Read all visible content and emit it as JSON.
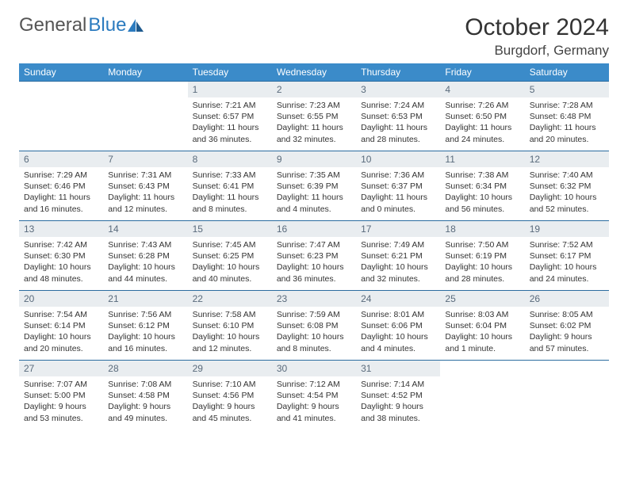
{
  "logo": {
    "text1": "General",
    "text2": "Blue"
  },
  "title": "October 2024",
  "location": "Burgdorf, Germany",
  "colors": {
    "header_bg": "#3b8bc9",
    "header_text": "#ffffff",
    "daynum_bg": "#e9edf0",
    "daynum_text": "#5a6b7c",
    "row_border": "#2b6ca0",
    "logo_accent": "#2b7bbf"
  },
  "weekdays": [
    "Sunday",
    "Monday",
    "Tuesday",
    "Wednesday",
    "Thursday",
    "Friday",
    "Saturday"
  ],
  "weeks": [
    [
      {
        "day": "",
        "sunrise": "",
        "sunset": "",
        "daylight": ""
      },
      {
        "day": "",
        "sunrise": "",
        "sunset": "",
        "daylight": ""
      },
      {
        "day": "1",
        "sunrise": "Sunrise: 7:21 AM",
        "sunset": "Sunset: 6:57 PM",
        "daylight": "Daylight: 11 hours and 36 minutes."
      },
      {
        "day": "2",
        "sunrise": "Sunrise: 7:23 AM",
        "sunset": "Sunset: 6:55 PM",
        "daylight": "Daylight: 11 hours and 32 minutes."
      },
      {
        "day": "3",
        "sunrise": "Sunrise: 7:24 AM",
        "sunset": "Sunset: 6:53 PM",
        "daylight": "Daylight: 11 hours and 28 minutes."
      },
      {
        "day": "4",
        "sunrise": "Sunrise: 7:26 AM",
        "sunset": "Sunset: 6:50 PM",
        "daylight": "Daylight: 11 hours and 24 minutes."
      },
      {
        "day": "5",
        "sunrise": "Sunrise: 7:28 AM",
        "sunset": "Sunset: 6:48 PM",
        "daylight": "Daylight: 11 hours and 20 minutes."
      }
    ],
    [
      {
        "day": "6",
        "sunrise": "Sunrise: 7:29 AM",
        "sunset": "Sunset: 6:46 PM",
        "daylight": "Daylight: 11 hours and 16 minutes."
      },
      {
        "day": "7",
        "sunrise": "Sunrise: 7:31 AM",
        "sunset": "Sunset: 6:43 PM",
        "daylight": "Daylight: 11 hours and 12 minutes."
      },
      {
        "day": "8",
        "sunrise": "Sunrise: 7:33 AM",
        "sunset": "Sunset: 6:41 PM",
        "daylight": "Daylight: 11 hours and 8 minutes."
      },
      {
        "day": "9",
        "sunrise": "Sunrise: 7:35 AM",
        "sunset": "Sunset: 6:39 PM",
        "daylight": "Daylight: 11 hours and 4 minutes."
      },
      {
        "day": "10",
        "sunrise": "Sunrise: 7:36 AM",
        "sunset": "Sunset: 6:37 PM",
        "daylight": "Daylight: 11 hours and 0 minutes."
      },
      {
        "day": "11",
        "sunrise": "Sunrise: 7:38 AM",
        "sunset": "Sunset: 6:34 PM",
        "daylight": "Daylight: 10 hours and 56 minutes."
      },
      {
        "day": "12",
        "sunrise": "Sunrise: 7:40 AM",
        "sunset": "Sunset: 6:32 PM",
        "daylight": "Daylight: 10 hours and 52 minutes."
      }
    ],
    [
      {
        "day": "13",
        "sunrise": "Sunrise: 7:42 AM",
        "sunset": "Sunset: 6:30 PM",
        "daylight": "Daylight: 10 hours and 48 minutes."
      },
      {
        "day": "14",
        "sunrise": "Sunrise: 7:43 AM",
        "sunset": "Sunset: 6:28 PM",
        "daylight": "Daylight: 10 hours and 44 minutes."
      },
      {
        "day": "15",
        "sunrise": "Sunrise: 7:45 AM",
        "sunset": "Sunset: 6:25 PM",
        "daylight": "Daylight: 10 hours and 40 minutes."
      },
      {
        "day": "16",
        "sunrise": "Sunrise: 7:47 AM",
        "sunset": "Sunset: 6:23 PM",
        "daylight": "Daylight: 10 hours and 36 minutes."
      },
      {
        "day": "17",
        "sunrise": "Sunrise: 7:49 AM",
        "sunset": "Sunset: 6:21 PM",
        "daylight": "Daylight: 10 hours and 32 minutes."
      },
      {
        "day": "18",
        "sunrise": "Sunrise: 7:50 AM",
        "sunset": "Sunset: 6:19 PM",
        "daylight": "Daylight: 10 hours and 28 minutes."
      },
      {
        "day": "19",
        "sunrise": "Sunrise: 7:52 AM",
        "sunset": "Sunset: 6:17 PM",
        "daylight": "Daylight: 10 hours and 24 minutes."
      }
    ],
    [
      {
        "day": "20",
        "sunrise": "Sunrise: 7:54 AM",
        "sunset": "Sunset: 6:14 PM",
        "daylight": "Daylight: 10 hours and 20 minutes."
      },
      {
        "day": "21",
        "sunrise": "Sunrise: 7:56 AM",
        "sunset": "Sunset: 6:12 PM",
        "daylight": "Daylight: 10 hours and 16 minutes."
      },
      {
        "day": "22",
        "sunrise": "Sunrise: 7:58 AM",
        "sunset": "Sunset: 6:10 PM",
        "daylight": "Daylight: 10 hours and 12 minutes."
      },
      {
        "day": "23",
        "sunrise": "Sunrise: 7:59 AM",
        "sunset": "Sunset: 6:08 PM",
        "daylight": "Daylight: 10 hours and 8 minutes."
      },
      {
        "day": "24",
        "sunrise": "Sunrise: 8:01 AM",
        "sunset": "Sunset: 6:06 PM",
        "daylight": "Daylight: 10 hours and 4 minutes."
      },
      {
        "day": "25",
        "sunrise": "Sunrise: 8:03 AM",
        "sunset": "Sunset: 6:04 PM",
        "daylight": "Daylight: 10 hours and 1 minute."
      },
      {
        "day": "26",
        "sunrise": "Sunrise: 8:05 AM",
        "sunset": "Sunset: 6:02 PM",
        "daylight": "Daylight: 9 hours and 57 minutes."
      }
    ],
    [
      {
        "day": "27",
        "sunrise": "Sunrise: 7:07 AM",
        "sunset": "Sunset: 5:00 PM",
        "daylight": "Daylight: 9 hours and 53 minutes."
      },
      {
        "day": "28",
        "sunrise": "Sunrise: 7:08 AM",
        "sunset": "Sunset: 4:58 PM",
        "daylight": "Daylight: 9 hours and 49 minutes."
      },
      {
        "day": "29",
        "sunrise": "Sunrise: 7:10 AM",
        "sunset": "Sunset: 4:56 PM",
        "daylight": "Daylight: 9 hours and 45 minutes."
      },
      {
        "day": "30",
        "sunrise": "Sunrise: 7:12 AM",
        "sunset": "Sunset: 4:54 PM",
        "daylight": "Daylight: 9 hours and 41 minutes."
      },
      {
        "day": "31",
        "sunrise": "Sunrise: 7:14 AM",
        "sunset": "Sunset: 4:52 PM",
        "daylight": "Daylight: 9 hours and 38 minutes."
      },
      {
        "day": "",
        "sunrise": "",
        "sunset": "",
        "daylight": ""
      },
      {
        "day": "",
        "sunrise": "",
        "sunset": "",
        "daylight": ""
      }
    ]
  ]
}
